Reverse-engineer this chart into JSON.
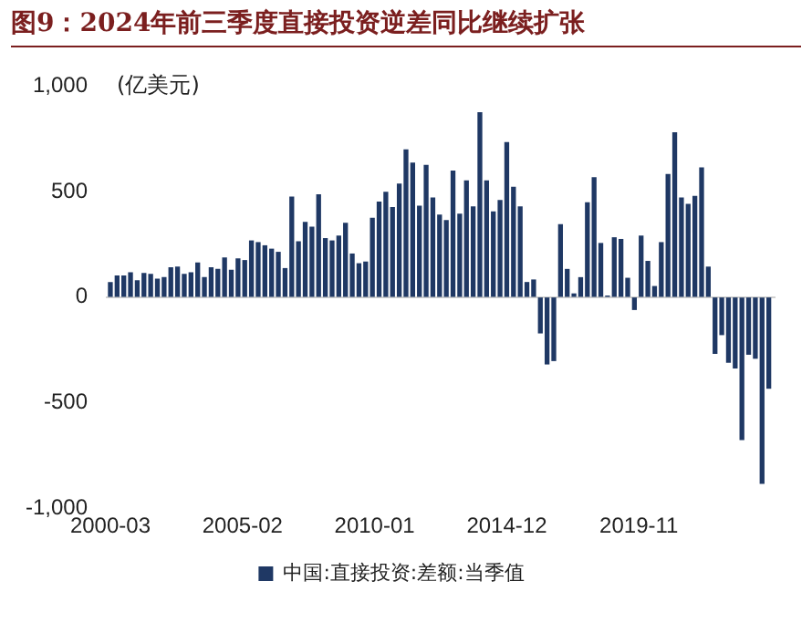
{
  "chart_data": {
    "type": "bar",
    "title": "图9：2024年前三季度直接投资逆差同比继续扩张",
    "ylabel": "(亿美元)",
    "legend": "bottom",
    "x": [
      "2000-03",
      "2000-06",
      "2000-09",
      "2000-12",
      "2001-03",
      "2001-06",
      "2001-09",
      "2001-12",
      "2002-03",
      "2002-06",
      "2002-09",
      "2002-12",
      "2003-03",
      "2003-06",
      "2003-09",
      "2003-12",
      "2004-03",
      "2004-06",
      "2004-09",
      "2004-12",
      "2005-03",
      "2005-06",
      "2005-09",
      "2005-12",
      "2006-03",
      "2006-06",
      "2006-09",
      "2006-12",
      "2007-03",
      "2007-06",
      "2007-09",
      "2007-12",
      "2008-03",
      "2008-06",
      "2008-09",
      "2008-12",
      "2009-03",
      "2009-06",
      "2009-09",
      "2009-12",
      "2010-03",
      "2010-06",
      "2010-09",
      "2010-12",
      "2011-03",
      "2011-06",
      "2011-09",
      "2011-12",
      "2012-03",
      "2012-06",
      "2012-09",
      "2012-12",
      "2013-03",
      "2013-06",
      "2013-09",
      "2013-12",
      "2014-03",
      "2014-06",
      "2014-09",
      "2014-12",
      "2015-03",
      "2015-06",
      "2015-09",
      "2015-12",
      "2016-03",
      "2016-06",
      "2016-09",
      "2016-12",
      "2017-03",
      "2017-06",
      "2017-09",
      "2017-12",
      "2018-03",
      "2018-06",
      "2018-09",
      "2018-12",
      "2019-03",
      "2019-06",
      "2019-09",
      "2019-12",
      "2020-03",
      "2020-06",
      "2020-09",
      "2020-12",
      "2021-03",
      "2021-06",
      "2021-09",
      "2021-12",
      "2022-03",
      "2022-06",
      "2022-09",
      "2022-12",
      "2023-03",
      "2023-06",
      "2023-09",
      "2023-12",
      "2024-03",
      "2024-06",
      "2024-09"
    ],
    "series": [
      {
        "name": "中国:直接投资:差额:当季值",
        "color": "#1f3864",
        "values": [
          69,
          100,
          100,
          115,
          77,
          112,
          108,
          85,
          92,
          139,
          142,
          108,
          115,
          162,
          92,
          139,
          131,
          185,
          127,
          181,
          173,
          266,
          258,
          243,
          227,
          212,
          135,
          474,
          262,
          354,
          331,
          485,
          277,
          266,
          289,
          350,
          204,
          158,
          166,
          373,
          450,
          497,
          424,
          535,
          697,
          635,
          431,
          624,
          470,
          389,
          362,
          597,
          393,
          551,
          427,
          874,
          551,
          404,
          458,
          732,
          520,
          427,
          69,
          81,
          -169,
          -316,
          -300,
          343,
          131,
          15,
          92,
          447,
          566,
          254,
          5,
          281,
          273,
          89,
          -58,
          289,
          169,
          50,
          258,
          581,
          778,
          470,
          439,
          477,
          612,
          142,
          -266,
          -177,
          -308,
          -335,
          -674,
          -270,
          -289,
          -882,
          -431
        ]
      }
    ],
    "xlim": [
      "2000-01",
      "2024-12"
    ],
    "xticks": [
      "2000-03",
      "2005-02",
      "2010-01",
      "2014-12",
      "2019-11"
    ],
    "ylim": [
      -1000,
      1000
    ],
    "yticks": [
      {
        "value": 1000,
        "label": "1,000"
      },
      500,
      0,
      -500,
      {
        "value": -1000,
        "label": "-1,000"
      }
    ]
  }
}
